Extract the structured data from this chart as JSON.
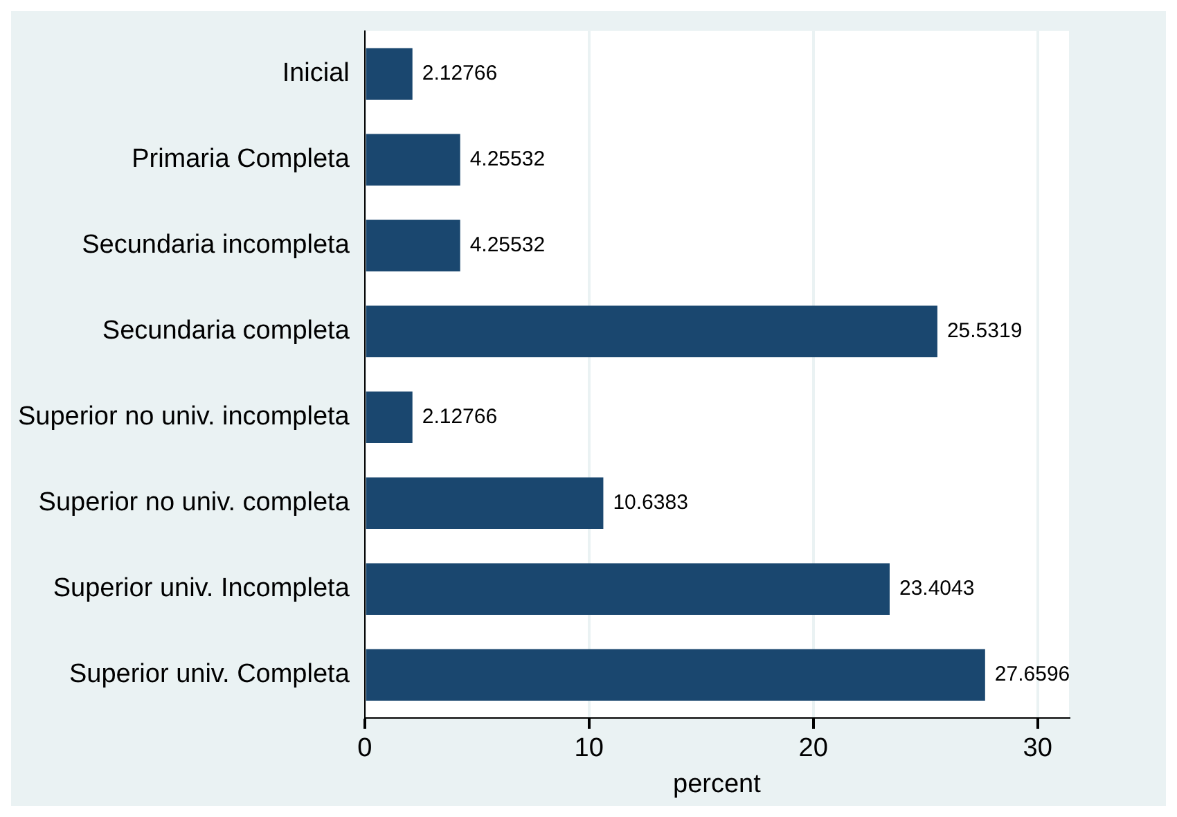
{
  "chart_data": {
    "type": "bar",
    "orientation": "horizontal",
    "xlabel": "percent",
    "categories": [
      "Inicial",
      "Primaria Completa",
      "Secundaria incompleta",
      "Secundaria completa",
      "Superior no univ. incompleta",
      "Superior no univ. completa",
      "Superior univ. Incompleta",
      "Superior univ. Completa"
    ],
    "values": [
      2.12766,
      4.25532,
      4.25532,
      25.5319,
      2.12766,
      10.6383,
      23.4043,
      27.6596
    ],
    "color": "#1a476f",
    "xlim": [
      0,
      31.4
    ],
    "xticks": [
      0,
      10,
      20,
      30
    ],
    "grid": "x",
    "data_labels": true,
    "legend": false
  }
}
